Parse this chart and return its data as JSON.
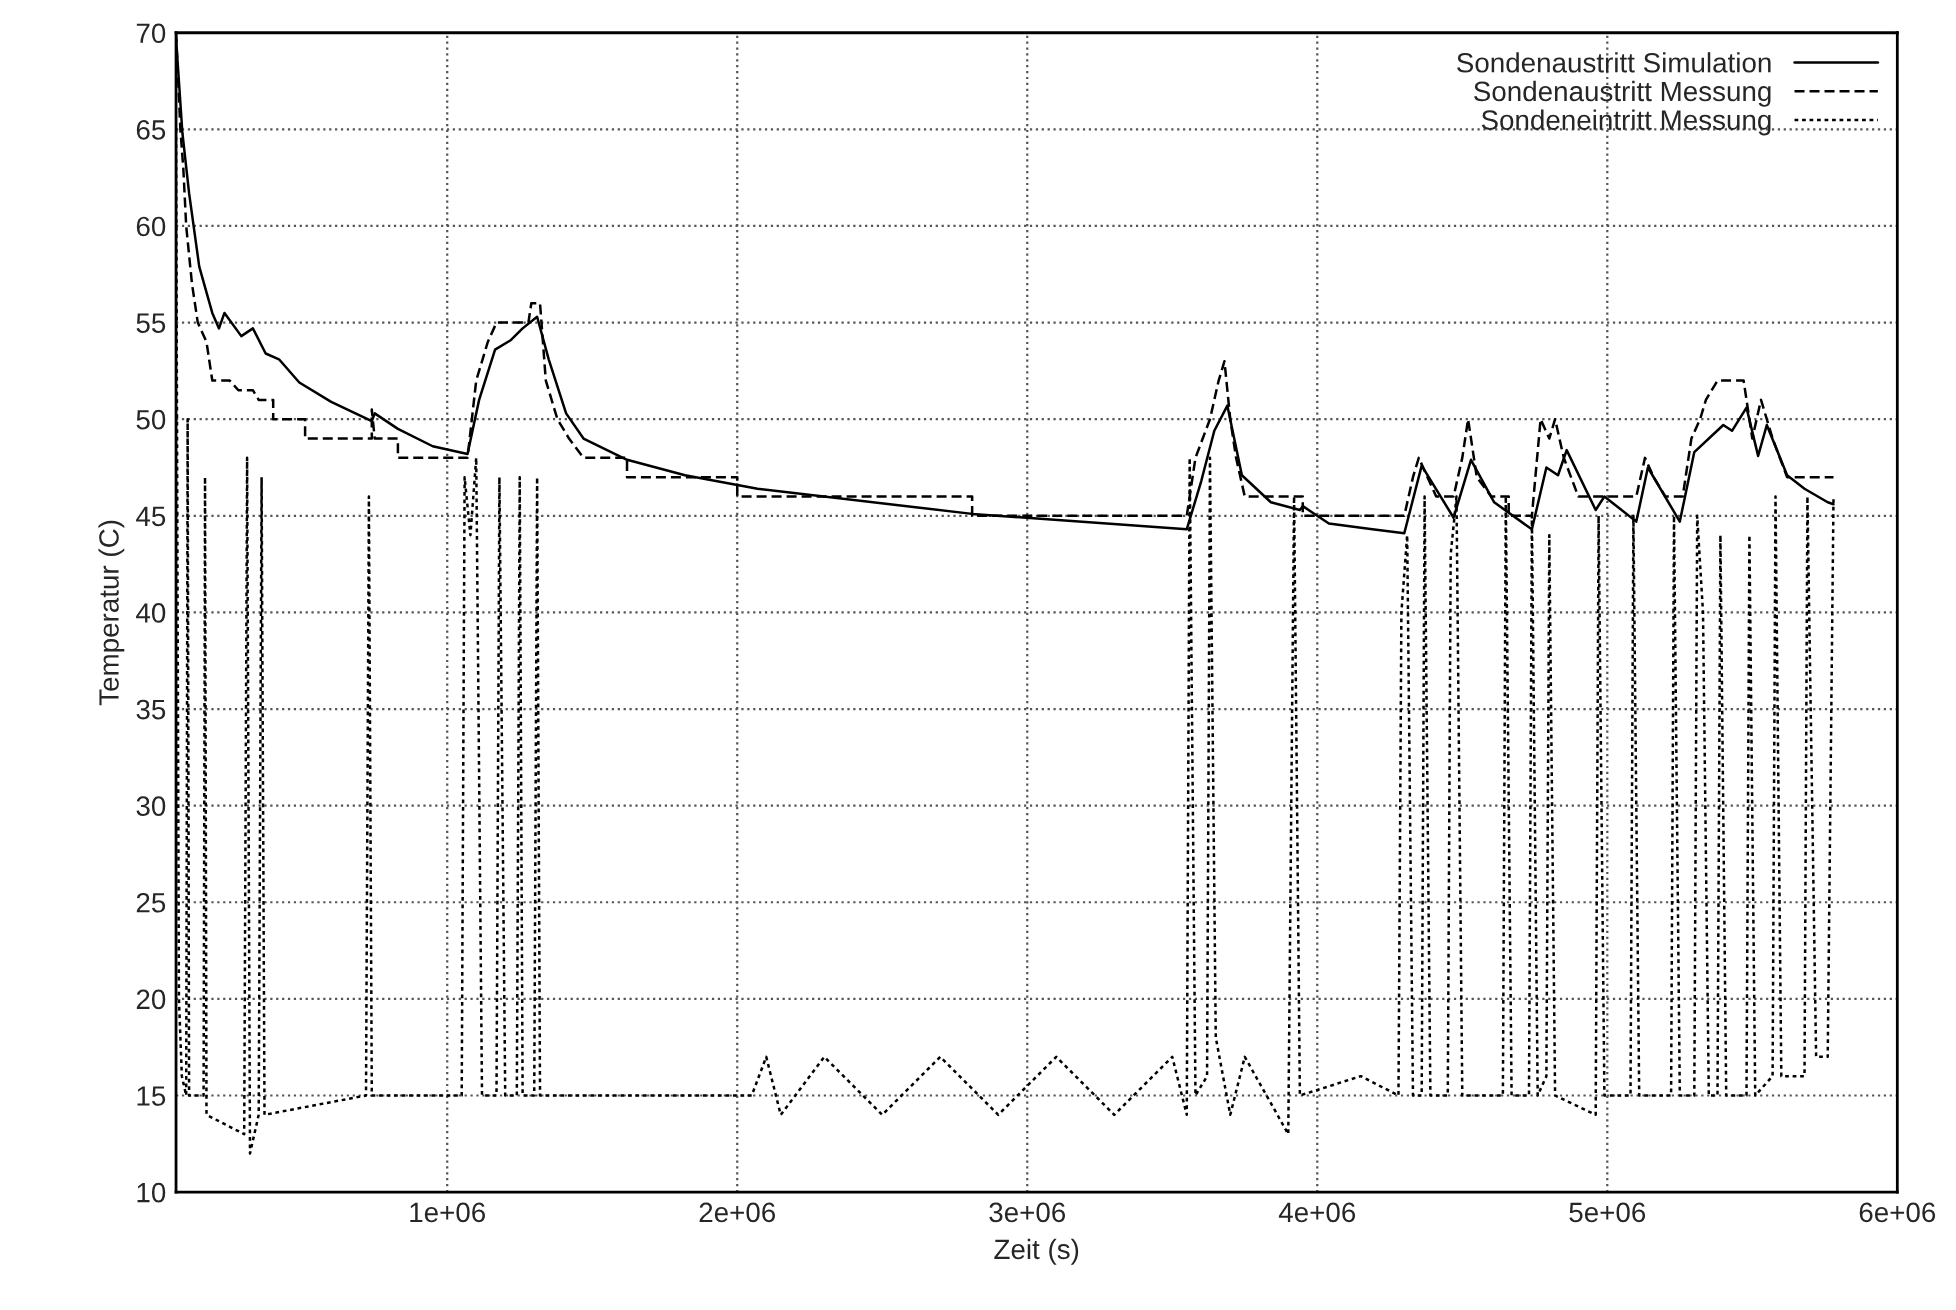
{
  "chart_data": {
    "type": "line",
    "xlabel": "Zeit (s)",
    "ylabel": "Temperatur (C)",
    "xlim": [
      65000,
      6000000
    ],
    "xticks": [
      {
        "value": 1000000,
        "label": "1e+06"
      },
      {
        "value": 2000000,
        "label": "2e+06"
      },
      {
        "value": 3000000,
        "label": "3e+06"
      },
      {
        "value": 4000000,
        "label": "4e+06"
      },
      {
        "value": 5000000,
        "label": "5e+06"
      },
      {
        "value": 6000000,
        "label": "6e+06"
      }
    ],
    "ylim": [
      10,
      70
    ],
    "yticks": [
      10,
      15,
      20,
      25,
      30,
      35,
      40,
      45,
      50,
      55,
      60,
      65,
      70
    ],
    "grid": true,
    "legend": "top right",
    "marker": "none",
    "series": [
      {
        "name": "Sondenaustritt Simulation",
        "color": "#000000",
        "line_style": "solid",
        "x": [
          65000,
          87000,
          110000,
          145000,
          190000,
          213000,
          232000,
          290000,
          330000,
          374000,
          420000,
          490000,
          600000,
          740000,
          750000,
          830000,
          950000,
          1070000,
          1110000,
          1165000,
          1220000,
          1260000,
          1310000,
          1350000,
          1410000,
          1470000,
          1620000,
          1820000,
          2070000,
          2810000,
          3550000,
          3600000,
          3645000,
          3690000,
          3740000,
          3840000,
          3940000,
          3950000,
          4040000,
          4190000,
          4300000,
          4360000,
          4470000,
          4530000,
          4610000,
          4740000,
          4790000,
          4830000,
          4860000,
          4960000,
          4990000,
          5100000,
          5140000,
          5250000,
          5300000,
          5400000,
          5430000,
          5480000,
          5520000,
          5550000,
          5620000,
          5680000,
          5760000,
          5780000
        ],
        "values": [
          69.7,
          64.8,
          61.7,
          57.9,
          55.5,
          54.7,
          55.5,
          54.3,
          54.7,
          53.4,
          53.1,
          51.9,
          50.9,
          49.9,
          50.3,
          49.5,
          48.6,
          48.2,
          51.0,
          53.6,
          54.1,
          54.7,
          55.3,
          53.1,
          50.3,
          49.0,
          47.9,
          47.1,
          46.4,
          45.1,
          44.3,
          46.8,
          49.4,
          50.7,
          47.1,
          45.7,
          45.3,
          45.5,
          44.6,
          44.3,
          44.1,
          47.6,
          44.9,
          47.9,
          45.7,
          44.3,
          47.5,
          47.1,
          48.4,
          45.3,
          46.0,
          44.7,
          47.5,
          44.7,
          48.3,
          49.7,
          49.4,
          50.6,
          48.1,
          49.7,
          47.1,
          46.4,
          45.7,
          45.6
        ]
      },
      {
        "name": "Sondenaustritt Messung",
        "color": "#000000",
        "line_style": "dashed",
        "x": [
          65000,
          80000,
          90000,
          100000,
          120000,
          140000,
          170000,
          190000,
          250000,
          280000,
          330000,
          350000,
          400000,
          400001,
          510000,
          510001,
          740000,
          740001,
          750000,
          830000,
          830001,
          1070000,
          1100000,
          1140000,
          1170000,
          1280000,
          1290000,
          1320000,
          1340000,
          1380000,
          1420000,
          1470000,
          1620000,
          1620001,
          2000000,
          2000001,
          2810000,
          2810001,
          3550000,
          3580000,
          3630000,
          3660000,
          3680000,
          3700000,
          3720000,
          3750000,
          3950000,
          3950001,
          4300000,
          4330000,
          4350000,
          4380000,
          4410000,
          4470000,
          4500000,
          4520000,
          4550000,
          4600000,
          4660000,
          4660001,
          4740000,
          4770000,
          4800000,
          4820000,
          4850000,
          4900000,
          5100000,
          5130000,
          5160000,
          5200000,
          5260000,
          5290000,
          5320000,
          5340000,
          5380000,
          5470000,
          5500000,
          5530000,
          5570000,
          5620000,
          5780000
        ],
        "values": [
          70,
          65,
          63,
          60,
          57,
          55,
          54,
          52,
          52,
          51.5,
          51.5,
          51,
          51,
          50,
          50,
          49,
          49,
          50.5,
          49,
          49,
          48,
          48,
          52,
          54,
          55,
          55,
          56,
          56,
          52,
          50,
          49,
          48,
          48,
          47,
          47,
          46,
          46,
          45,
          45,
          48,
          50,
          52,
          53,
          50,
          48,
          46,
          46,
          45,
          45,
          47,
          48,
          47,
          46,
          46,
          48,
          50,
          47,
          46,
          46,
          45,
          45,
          50,
          49,
          50,
          48,
          46,
          46,
          48,
          47,
          46,
          46,
          49,
          50,
          51,
          52,
          52,
          49,
          51,
          49,
          47,
          47
        ]
      },
      {
        "name": "Sondeneintritt Messung",
        "color": "#000000",
        "line_style": "dotted",
        "x": [
          65000,
          75000,
          85000,
          100000,
          105000,
          110000,
          160000,
          165000,
          170000,
          300000,
          310000,
          320000,
          350000,
          360000,
          370000,
          720000,
          730000,
          740000,
          1050000,
          1060000,
          1080000,
          1100000,
          1120000,
          1170000,
          1180000,
          1200000,
          1240000,
          1250000,
          1260000,
          1300000,
          1310000,
          1320000,
          2050000,
          2100000,
          2150000,
          2300000,
          2500000,
          2700000,
          2900000,
          3100000,
          3300000,
          3500000,
          3550000,
          3560000,
          3580000,
          3620000,
          3630000,
          3650000,
          3700000,
          3750000,
          3900000,
          3920000,
          3940000,
          4150000,
          4280000,
          4290000,
          4310000,
          4330000,
          4360000,
          4370000,
          4390000,
          4450000,
          4460000,
          4480000,
          4500000,
          4640000,
          4650000,
          4670000,
          4730000,
          4740000,
          4760000,
          4790000,
          4800000,
          4820000,
          4960000,
          4970000,
          4990000,
          5080000,
          5090000,
          5110000,
          5220000,
          5230000,
          5250000,
          5300000,
          5310000,
          5330000,
          5350000,
          5380000,
          5390000,
          5410000,
          5480000,
          5490000,
          5510000,
          5570000,
          5580000,
          5600000,
          5680000,
          5690000,
          5720000,
          5760000,
          5780000
        ],
        "values": [
          65,
          20,
          16,
          15,
          50,
          15,
          15,
          47,
          14,
          13,
          48,
          12,
          14,
          47,
          14,
          15,
          46,
          15,
          15,
          47,
          44,
          48,
          15,
          15,
          47,
          15,
          15,
          47,
          15,
          15,
          47,
          15,
          15,
          17,
          14,
          17,
          14,
          17,
          14,
          17,
          14,
          17,
          14,
          48,
          15,
          16,
          48,
          18,
          14,
          17,
          13,
          46,
          15,
          16,
          15,
          40,
          44,
          15,
          15,
          46,
          15,
          15,
          43,
          46,
          15,
          15,
          46,
          15,
          15,
          45,
          15,
          16,
          44,
          15,
          14,
          45,
          15,
          15,
          45,
          15,
          15,
          45,
          15,
          15,
          45,
          40,
          15,
          15,
          44,
          15,
          15,
          44,
          15,
          16,
          46,
          16,
          16,
          46,
          17,
          17,
          46
        ]
      }
    ]
  }
}
